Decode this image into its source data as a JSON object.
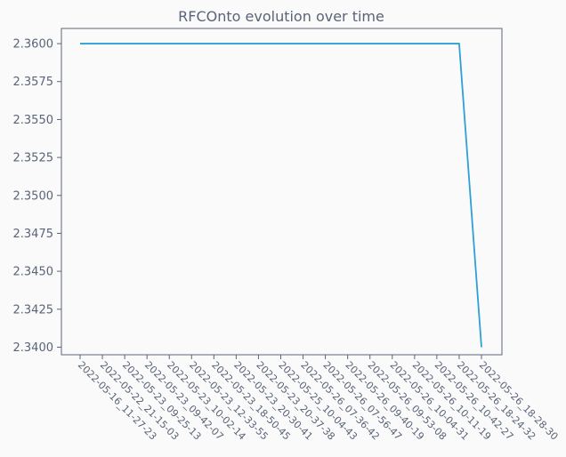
{
  "chart_data": {
    "type": "line",
    "title": "RFCOnto evolution over time",
    "xlabel": "",
    "ylabel": "",
    "categories": [
      "2022-05-16_11-27-23",
      "2022-05-22_21-15-03",
      "2022-05-23_09-25-13",
      "2022-05-23_09-42-07",
      "2022-05-23_10-02-14",
      "2022-05-23_12-33-55",
      "2022-05-23_18-50-45",
      "2022-05-23_20-30-41",
      "2022-05-23_20-37-38",
      "2022-05-25_10-04-43",
      "2022-05-26_07-36-42",
      "2022-05-26_07-56-47",
      "2022-05-26_09-40-19",
      "2022-05-26_09-53-08",
      "2022-05-26_10-04-31",
      "2022-05-26_10-11-19",
      "2022-05-26_10-42-27",
      "2022-05-26_18-24-32",
      "2022-05-26_18-28-30"
    ],
    "series": [
      {
        "values": [
          2.36,
          2.36,
          2.36,
          2.36,
          2.36,
          2.36,
          2.36,
          2.36,
          2.36,
          2.36,
          2.36,
          2.36,
          2.36,
          2.36,
          2.36,
          2.36,
          2.36,
          2.36,
          2.34
        ],
        "color": "#2e9fd8"
      }
    ],
    "ylim": [
      2.3395,
      2.361
    ],
    "yticks": [
      2.34,
      2.3425,
      2.345,
      2.3475,
      2.35,
      2.3525,
      2.355,
      2.3575,
      2.36
    ],
    "ytick_labels": [
      "2.3400",
      "2.3425",
      "2.3450",
      "2.3475",
      "2.3500",
      "2.3525",
      "2.3550",
      "2.3575",
      "2.3600"
    ],
    "grid": false,
    "legend": "none"
  },
  "colors": {
    "background": "#fafafa",
    "text": "#5a6478",
    "axis": "#5a6478",
    "line": "#2e9fd8"
  }
}
